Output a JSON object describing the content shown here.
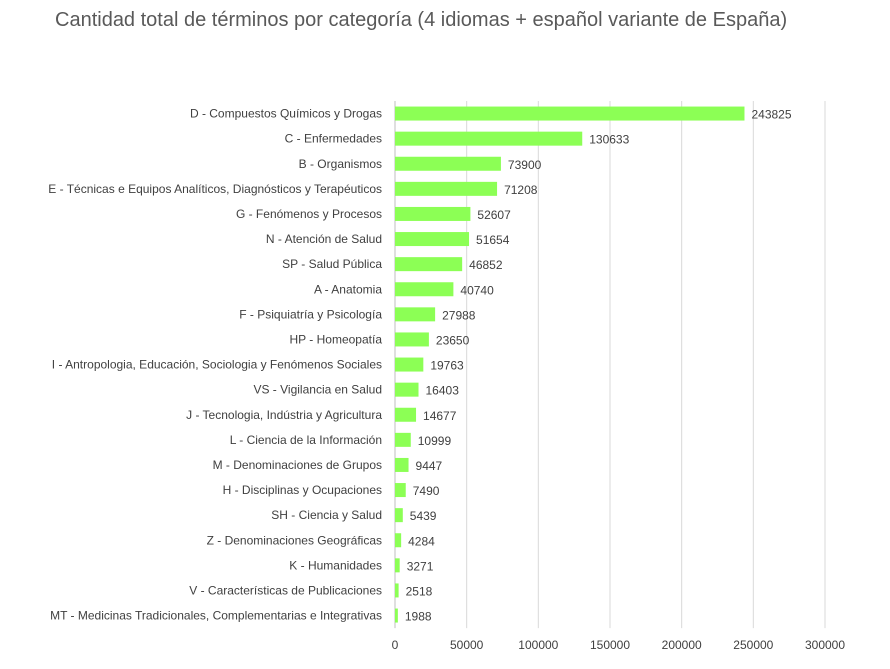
{
  "chart_data": {
    "type": "bar",
    "orientation": "horizontal",
    "title": "Cantidad total de términos por categoría (4 idiomas + español variante de España)",
    "xlabel": "",
    "ylabel": "",
    "xlim": [
      0,
      300000
    ],
    "x_ticks": [
      "0",
      "50000",
      "100000",
      "150000",
      "200000",
      "250000",
      "300000"
    ],
    "grid": true,
    "legend": "none",
    "bar_color": "#8CFF55",
    "categories": [
      "D - Compuestos Químicos y Drogas",
      "C - Enfermedades",
      "B - Organismos",
      "E - Técnicas e Equipos Analíticos, Diagnósticos y Terapéuticos",
      "G - Fenómenos y Procesos",
      "N - Atención de Salud",
      "SP - Salud Pública",
      "A - Anatomia",
      "F - Psiquiatría y Psicología",
      "HP - Homeopatía",
      "I - Antropologia, Educación, Sociologia y Fenómenos Sociales",
      "VS - Vigilancia en Salud",
      "J - Tecnologia, Indústria y Agricultura",
      "L - Ciencia de la Información",
      "M - Denominaciones de Grupos",
      "H - Disciplinas y Ocupaciones",
      "SH - Ciencia y Salud",
      "Z -  Denominaciones Geográficas",
      "K - Humanidades",
      "V - Características de Publicaciones",
      "MT - Medicinas Tradicionales, Complementarias e Integrativas"
    ],
    "values": [
      243825,
      130633,
      73900,
      71208,
      52607,
      51654,
      46852,
      40740,
      27988,
      23650,
      19763,
      16403,
      14677,
      10999,
      9447,
      7490,
      5439,
      4284,
      3271,
      2518,
      1988
    ]
  }
}
